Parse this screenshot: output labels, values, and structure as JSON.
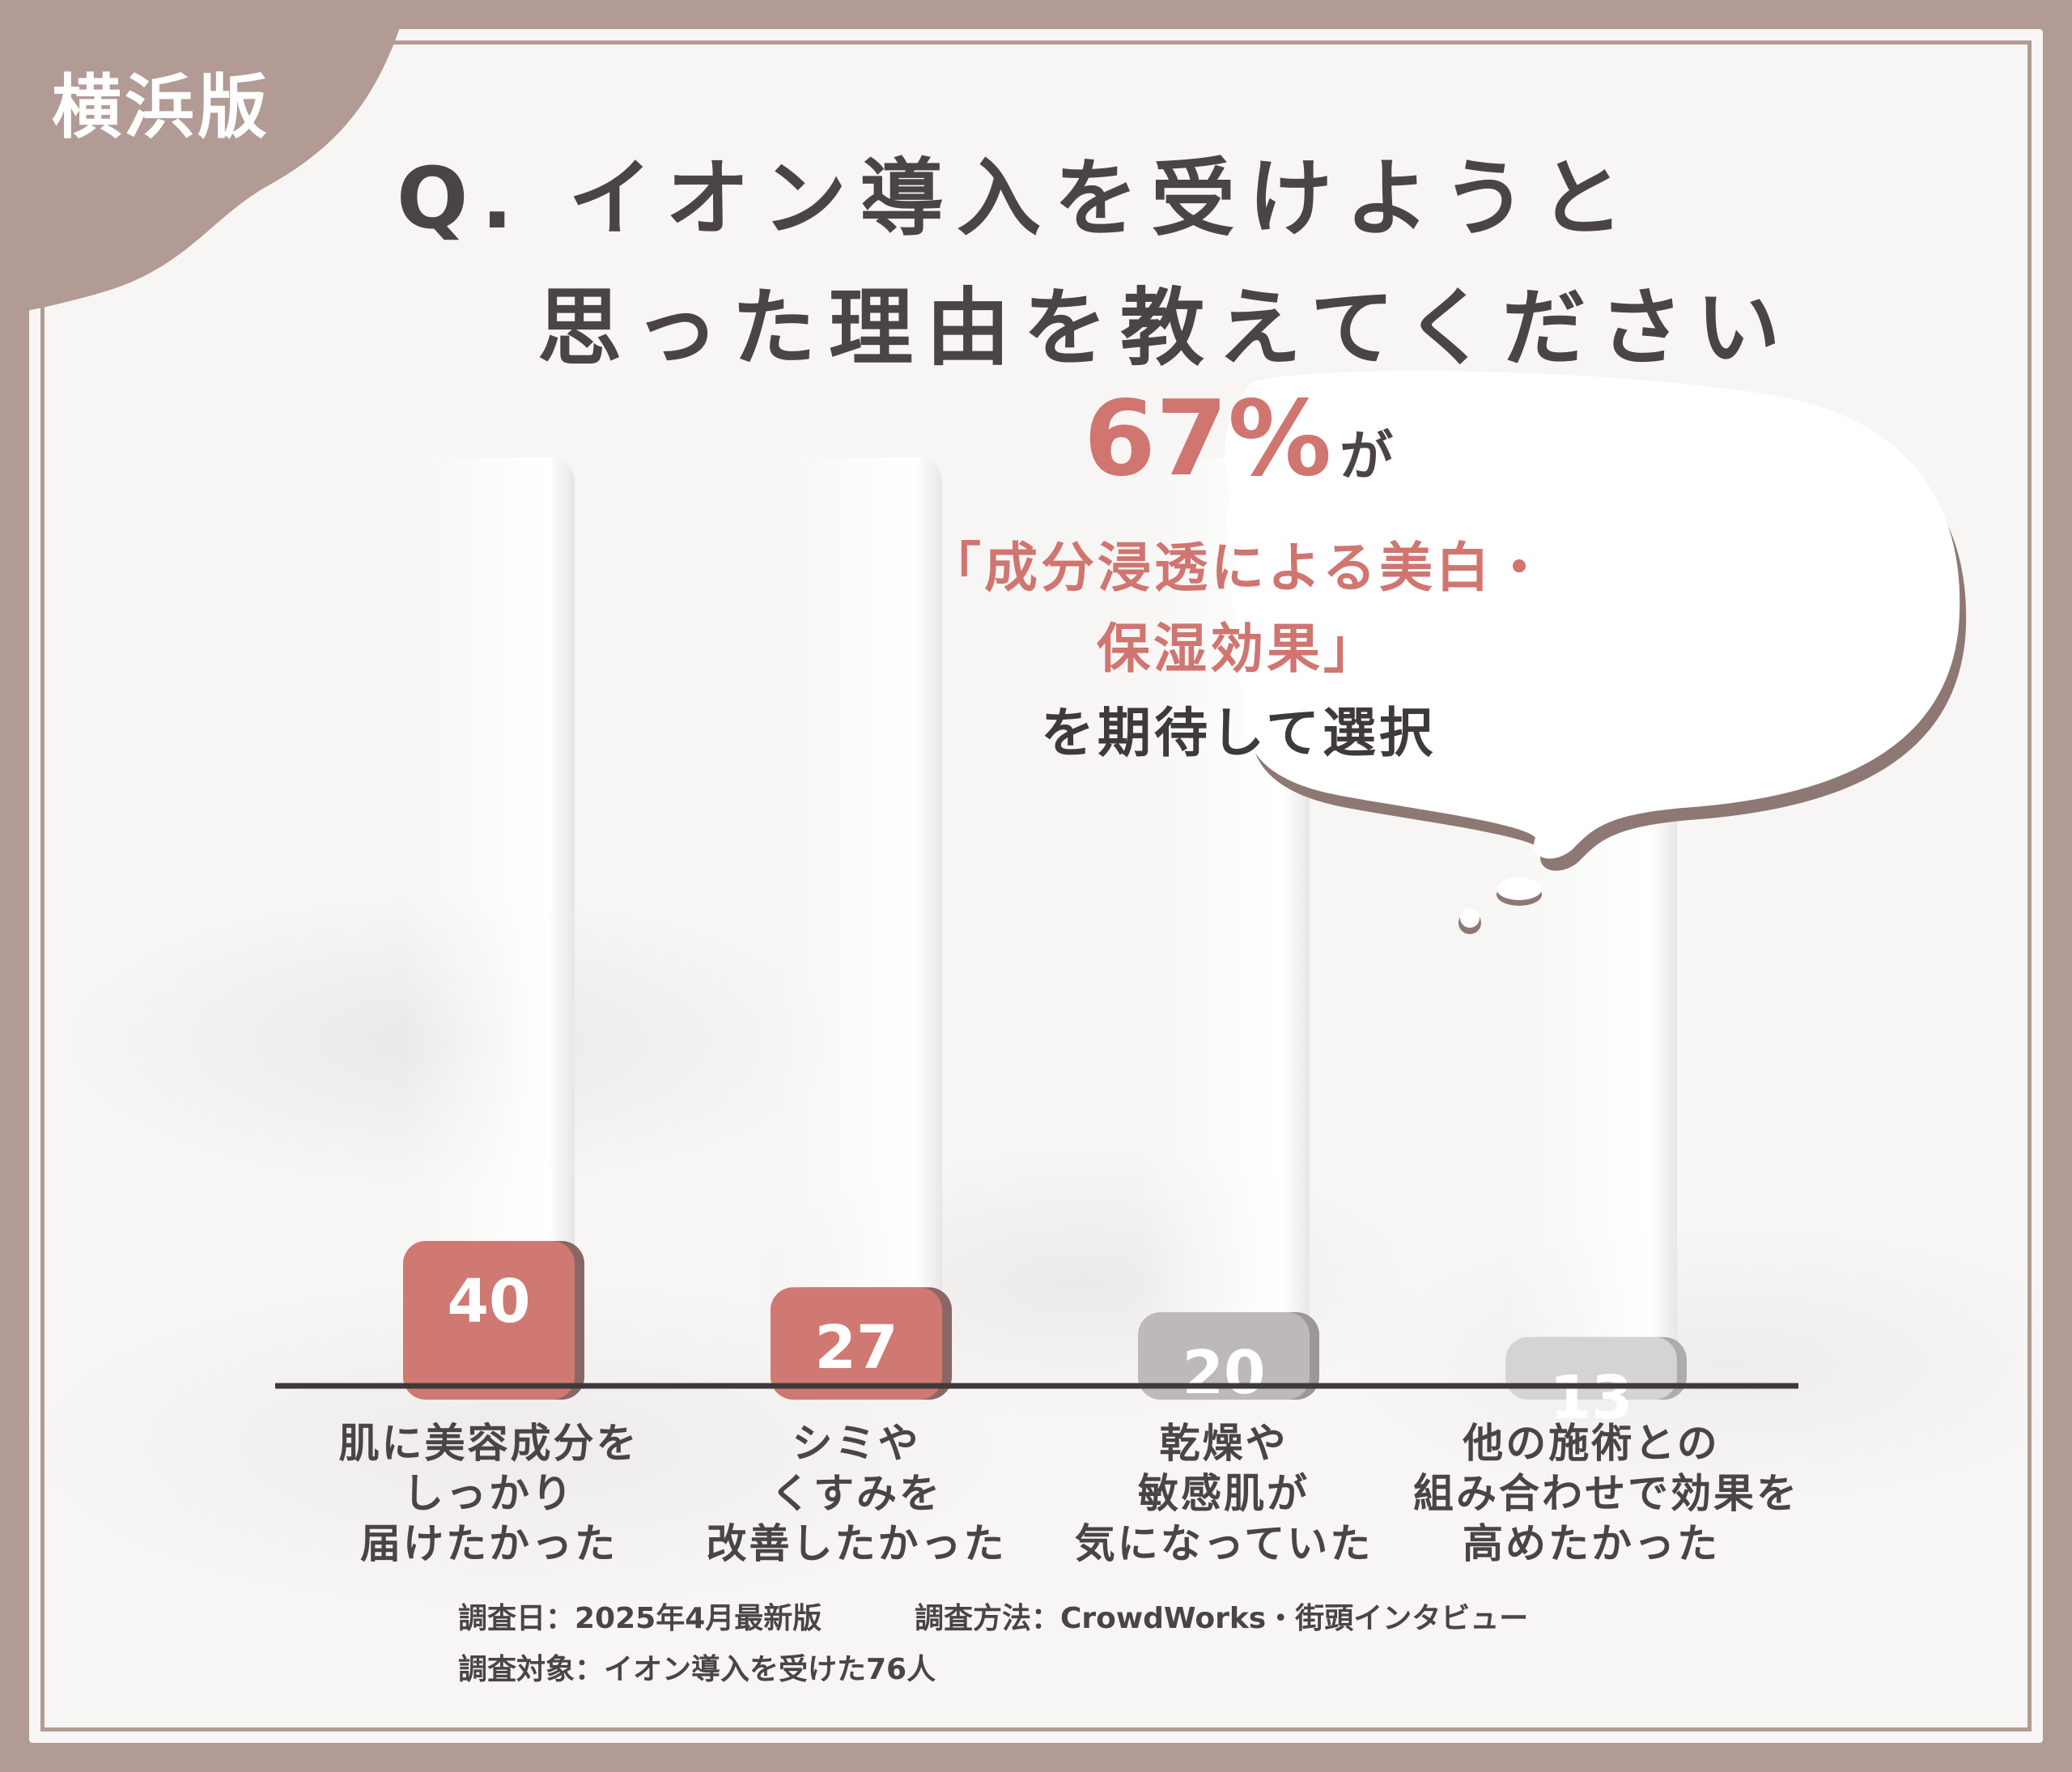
{
  "badge": {
    "label": "横浜版"
  },
  "title": {
    "line1": "Q. イオン導入を受けようと",
    "line2": "思った理由を教えてください"
  },
  "callout": {
    "percent": "67%",
    "suffix": "が",
    "line2": "「成分浸透による美白・",
    "line3": "保湿効果」",
    "line4": "を期待して選択"
  },
  "chart_data": {
    "type": "bar",
    "categories": [
      [
        "肌に美容成分を",
        "しっかり",
        "届けたかった"
      ],
      [
        "シミや",
        "くすみを",
        "改善したかった"
      ],
      [
        "乾燥や",
        "敏感肌が",
        "気になっていた"
      ],
      [
        "他の施術との",
        "組み合わせで効果を",
        "高めたかった"
      ]
    ],
    "values": [
      40,
      27,
      20,
      13
    ],
    "ylim": [
      0,
      100
    ],
    "grid": false,
    "colors": [
      "#d07872",
      "#d07872",
      "#bcb9b8",
      "#d6d4d3"
    ],
    "shadow_colors": [
      "#8a6764",
      "#8a6764",
      "#9a9796",
      "#aeacab"
    ]
  },
  "footnotes": {
    "date": "調査日：2025年4月最新版",
    "method": "調査方法：CrowdWorks・街頭インタビュー",
    "subject": "調査対象：イオン導入を受けた76人"
  }
}
